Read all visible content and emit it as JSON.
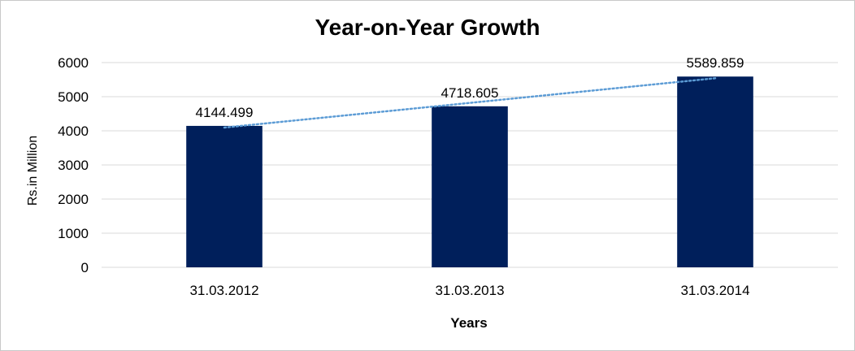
{
  "chart_data": {
    "type": "bar",
    "title": "Year-on-Year Growth",
    "xlabel": "Years",
    "ylabel": "Rs.in Million",
    "categories": [
      "31.03.2012",
      "31.03.2013",
      "31.03.2014"
    ],
    "values": [
      4144.499,
      4718.605,
      5589.859
    ],
    "data_labels": [
      "4144.499",
      "4718.605",
      "5589.859"
    ],
    "ylim": [
      0,
      6000
    ],
    "yticks": [
      0,
      1000,
      2000,
      3000,
      4000,
      5000,
      6000
    ],
    "grid": true,
    "legend": "none",
    "trendline": {
      "type": "linear",
      "style": "dotted"
    },
    "colors": {
      "bar": "#001f5b",
      "trendline": "#5b9bd5",
      "grid": "#d9d9d9"
    }
  }
}
